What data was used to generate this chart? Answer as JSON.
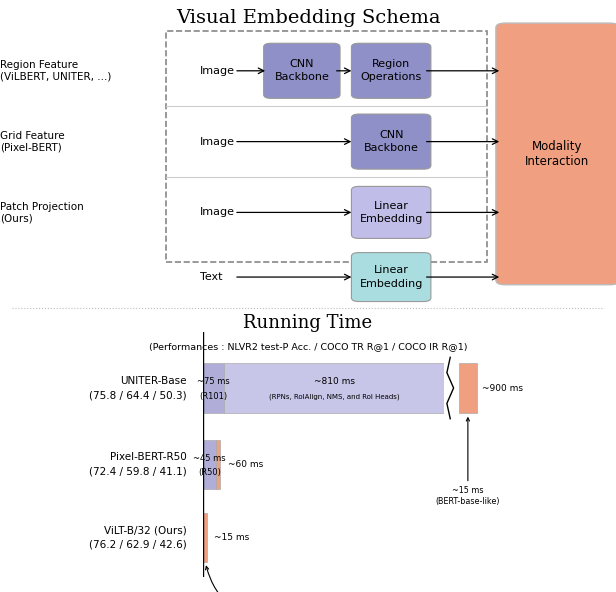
{
  "title_top": "Visual Embedding Schema",
  "title_bottom": "Running Time",
  "subtitle_bottom": "(Performances : NLVR2 test-P Acc. / COCO TR R@1 / COCO IR R@1)",
  "bg_color": "#ffffff",
  "fig_width": 6.16,
  "fig_height": 5.92,
  "purple_dark": "#9090c8",
  "purple_light": "#c0bee8",
  "teal_light": "#aadde0",
  "orange_light": "#f0a080",
  "dashed_box_color": "#888888",
  "modality_color": "#f0a080"
}
